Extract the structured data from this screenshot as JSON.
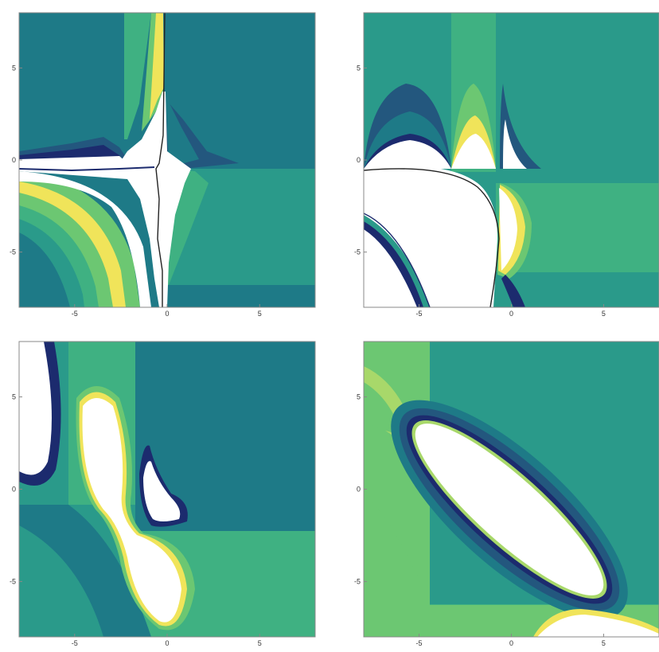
{
  "chart_data": [
    {
      "type": "contour",
      "panel": "top-left",
      "xlim": [
        -8,
        8
      ],
      "ylim": [
        -8,
        8
      ],
      "x_ticks": [
        "-5",
        "0",
        "5"
      ],
      "y_ticks": [
        "5",
        "0",
        "-5"
      ],
      "grid": false,
      "regions_from_outside_in": [
        "dark teal background",
        "teal",
        "green",
        "light green",
        "yellow",
        "white (high)"
      ],
      "features": [
        "vertical narrow band near x=0 from y=-8 to y=8",
        "horizontal boundary at y~-0.5 on right half",
        "concentric arcs in lower-left quadrant"
      ]
    },
    {
      "type": "contour",
      "panel": "top-right",
      "xlim": [
        -8,
        8
      ],
      "ylim": [
        -8,
        8
      ],
      "x_ticks": [
        "-5",
        "0",
        "5"
      ],
      "y_ticks": [
        "5",
        "0",
        "-5"
      ],
      "grid": false,
      "features": [
        "lobes along y~0 for x in [-8,0]",
        "large white region lower-left bounded by dark curves",
        "horizontal boundaries at y~-1.2 and y~-6"
      ]
    },
    {
      "type": "contour",
      "panel": "bottom-left",
      "xlim": [
        -8,
        8
      ],
      "ylim": [
        -8,
        8
      ],
      "x_ticks": [
        "-5",
        "0",
        "5"
      ],
      "y_ticks": [
        "5",
        "0",
        "-5"
      ],
      "grid": false,
      "features": [
        "white lobe at upper-left edge",
        "white elongated lobes around x~-3 and x~0",
        "small white island near (0.5, 0)"
      ]
    },
    {
      "type": "contour",
      "panel": "bottom-right",
      "xlim": [
        -8,
        8
      ],
      "ylim": [
        -8,
        8
      ],
      "x_ticks": [
        "-5",
        "0",
        "5"
      ],
      "y_ticks": [
        "5",
        "0",
        "-5"
      ],
      "grid": false,
      "features": [
        "diagonal white ellipse from (-3.5, 4) to (3, -5.8)",
        "concentric blue rings around ellipse",
        "white lobe at bottom near x~2"
      ]
    }
  ],
  "palette": {
    "dark_navy": "#1c2b6e",
    "deep_teal": "#23577e",
    "mid_teal": "#1e7a87",
    "teal": "#2a9a8a",
    "green": "#3fb182",
    "light_green": "#6cc772",
    "lime": "#a8d86a",
    "yellow": "#f0e45a",
    "white": "#ffffff",
    "frame": "#888888"
  }
}
